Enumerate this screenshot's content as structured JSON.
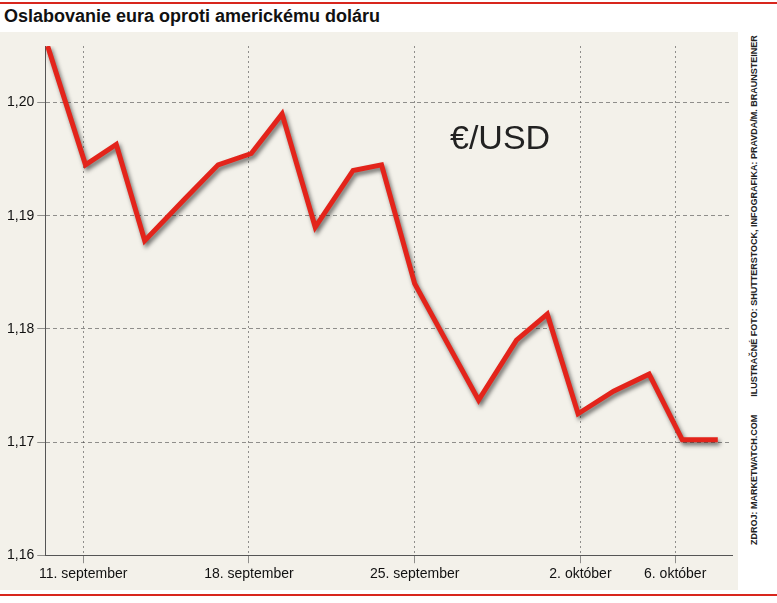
{
  "chart_data": {
    "type": "line",
    "title": "Oslabovanie eura oproti americkému doláru",
    "annotations": [
      "€/USD"
    ],
    "source": "ZDROJ: MARKETWATCH.COM",
    "credit": "ILUSTRAČNÉ FOTO: SHUTTERSTOCK, INFOGRAFIKA: PRAVDA/M. BRAUNSTEINER",
    "x": [
      9.5,
      11.1,
      12.4,
      13.6,
      15.3,
      16.7,
      18.1,
      19.4,
      20.8,
      22.4,
      23.6,
      25.0,
      27.7,
      29.3,
      30.6,
      31.9,
      33.4,
      34.9,
      36.3,
      37.8
    ],
    "values": [
      1.205,
      1.1945,
      1.1963,
      1.1878,
      1.1915,
      1.1945,
      1.1955,
      1.199,
      1.189,
      1.194,
      1.1945,
      1.184,
      1.1737,
      1.179,
      1.1813,
      1.1725,
      1.1745,
      1.176,
      1.1702,
      1.1702
    ],
    "color": "#e3241b",
    "xlim": [
      9.4,
      38.4
    ],
    "xticks": [
      {
        "value": 11,
        "label": "11. september"
      },
      {
        "value": 18,
        "label": "18. september"
      },
      {
        "value": 25,
        "label": "25. september"
      },
      {
        "value": 32,
        "label": "2. október"
      },
      {
        "value": 36,
        "label": "6. október"
      }
    ],
    "ylim": [
      1.16,
      1.205
    ],
    "yticks": [
      {
        "value": 1.16,
        "label": "1,16"
      },
      {
        "value": 1.17,
        "label": "1,17"
      },
      {
        "value": 1.18,
        "label": "1,18"
      },
      {
        "value": 1.19,
        "label": "1,19"
      },
      {
        "value": 1.2,
        "label": "1,20"
      }
    ],
    "grid": true
  }
}
